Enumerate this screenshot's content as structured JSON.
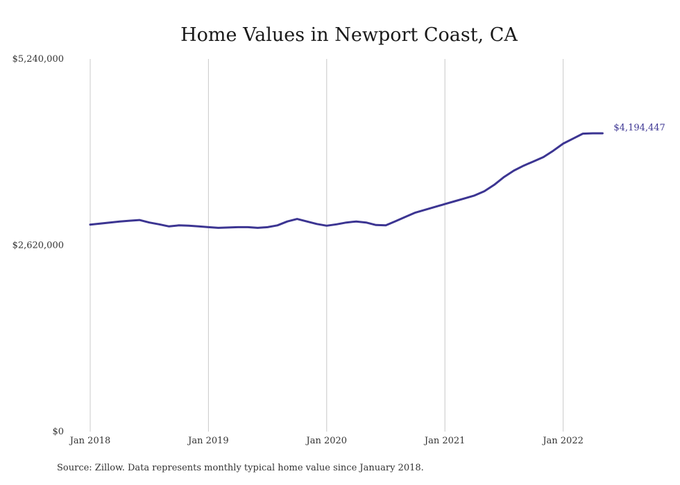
{
  "chart_data": {
    "type": "line",
    "title": "Home Values in Newport Coast, CA",
    "xlabel": "",
    "ylabel": "",
    "ylim": [
      0,
      5240000
    ],
    "y_ticks": [
      {
        "value": 0,
        "label": "$0"
      },
      {
        "value": 2620000,
        "label": "$2,620,000"
      },
      {
        "value": 5240000,
        "label": "$5,240,000"
      }
    ],
    "x_ticks": [
      {
        "date": "2018-01",
        "label": "Jan 2018"
      },
      {
        "date": "2019-01",
        "label": "Jan 2019"
      },
      {
        "date": "2020-01",
        "label": "Jan 2020"
      },
      {
        "date": "2021-01",
        "label": "Jan 2021"
      },
      {
        "date": "2022-01",
        "label": "Jan 2022"
      }
    ],
    "x_range": [
      "2018-01",
      "2022-05"
    ],
    "grid": {
      "vertical": true,
      "horizontal": false
    },
    "series": [
      {
        "color": "#3c3592",
        "x": [
          "2018-01",
          "2018-02",
          "2018-03",
          "2018-04",
          "2018-05",
          "2018-06",
          "2018-07",
          "2018-08",
          "2018-09",
          "2018-10",
          "2018-11",
          "2018-12",
          "2019-01",
          "2019-02",
          "2019-03",
          "2019-04",
          "2019-05",
          "2019-06",
          "2019-07",
          "2019-08",
          "2019-09",
          "2019-10",
          "2019-11",
          "2019-12",
          "2020-01",
          "2020-02",
          "2020-03",
          "2020-04",
          "2020-05",
          "2020-06",
          "2020-07",
          "2020-08",
          "2020-09",
          "2020-10",
          "2020-11",
          "2020-12",
          "2021-01",
          "2021-02",
          "2021-03",
          "2021-04",
          "2021-05",
          "2021-06",
          "2021-07",
          "2021-08",
          "2021-09",
          "2021-10",
          "2021-11",
          "2021-12",
          "2022-01",
          "2022-02",
          "2022-03",
          "2022-04",
          "2022-05"
        ],
        "values": [
          2910000,
          2925000,
          2940000,
          2955000,
          2965000,
          2975000,
          2940000,
          2915000,
          2885000,
          2900000,
          2895000,
          2885000,
          2875000,
          2865000,
          2870000,
          2875000,
          2875000,
          2865000,
          2875000,
          2900000,
          2955000,
          2990000,
          2955000,
          2920000,
          2895000,
          2915000,
          2940000,
          2955000,
          2940000,
          2905000,
          2900000,
          2960000,
          3020000,
          3080000,
          3120000,
          3160000,
          3200000,
          3240000,
          3280000,
          3320000,
          3380000,
          3470000,
          3580000,
          3670000,
          3740000,
          3800000,
          3860000,
          3950000,
          4050000,
          4120000,
          4190000,
          4194447,
          4194447
        ]
      }
    ],
    "end_label": "$4,194,447"
  },
  "source_note": "Source: Zillow. Data represents monthly typical home value since January 2018."
}
